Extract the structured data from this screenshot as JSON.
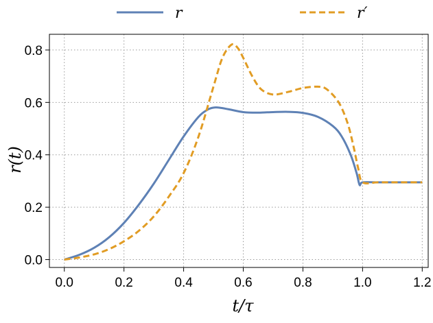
{
  "chart_data": {
    "type": "line",
    "xlabel": "t/τ",
    "ylabel": "r(t)",
    "xlim": [
      -0.05,
      1.22
    ],
    "ylim": [
      -0.03,
      0.86
    ],
    "x_ticks": [
      "0.0",
      "0.2",
      "0.4",
      "0.6",
      "0.8",
      "1.0",
      "1.2"
    ],
    "y_ticks": [
      "0.0",
      "0.2",
      "0.4",
      "0.6",
      "0.8"
    ],
    "grid": true,
    "legend_position": "top",
    "series": [
      {
        "name": "r",
        "color": "#5e81b5",
        "dash": "solid",
        "x": [
          0.0,
          0.05,
          0.1,
          0.15,
          0.2,
          0.25,
          0.3,
          0.35,
          0.4,
          0.45,
          0.48,
          0.5,
          0.52,
          0.55,
          0.6,
          0.65,
          0.7,
          0.75,
          0.8,
          0.85,
          0.9,
          0.93,
          0.96,
          0.98,
          0.99,
          1.0,
          1.05,
          1.1,
          1.15,
          1.2
        ],
        "y": [
          0.0,
          0.018,
          0.045,
          0.085,
          0.14,
          0.21,
          0.29,
          0.38,
          0.47,
          0.545,
          0.572,
          0.58,
          0.58,
          0.574,
          0.563,
          0.561,
          0.563,
          0.564,
          0.56,
          0.545,
          0.51,
          0.47,
          0.4,
          0.33,
          0.285,
          0.295,
          0.295,
          0.295,
          0.295,
          0.295
        ]
      },
      {
        "name": "r′",
        "color": "#e19c24",
        "dash": "dashed",
        "x": [
          0.0,
          0.05,
          0.1,
          0.15,
          0.2,
          0.25,
          0.3,
          0.35,
          0.4,
          0.45,
          0.5,
          0.53,
          0.56,
          0.58,
          0.6,
          0.63,
          0.66,
          0.7,
          0.75,
          0.8,
          0.85,
          0.88,
          0.92,
          0.95,
          0.97,
          0.985,
          1.0,
          1.05,
          1.1,
          1.15,
          1.2
        ],
        "y": [
          0.0,
          0.008,
          0.02,
          0.04,
          0.07,
          0.11,
          0.165,
          0.24,
          0.33,
          0.47,
          0.66,
          0.77,
          0.82,
          0.81,
          0.77,
          0.7,
          0.65,
          0.63,
          0.64,
          0.655,
          0.66,
          0.65,
          0.6,
          0.52,
          0.43,
          0.35,
          0.295,
          0.295,
          0.295,
          0.295,
          0.295
        ]
      }
    ]
  }
}
